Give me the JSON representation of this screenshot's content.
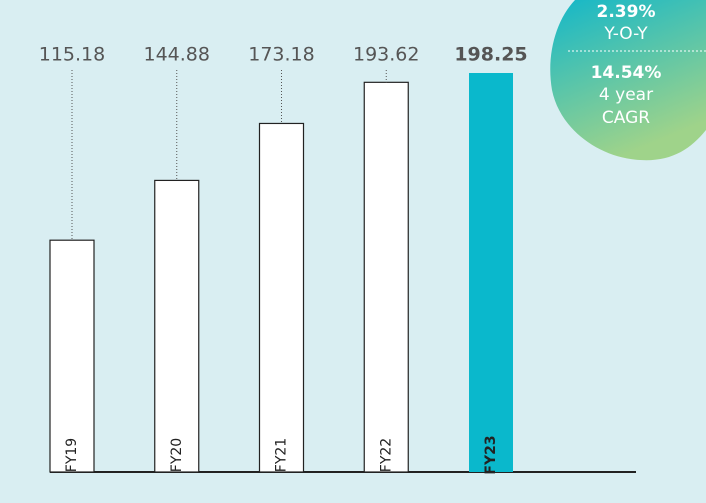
{
  "chart_data": {
    "type": "bar",
    "categories": [
      "FY19",
      "FY20",
      "FY21",
      "FY22",
      "FY23"
    ],
    "values": [
      115.18,
      144.88,
      173.18,
      193.62,
      198.25
    ],
    "color": "#ffffff",
    "highlight_color": "#0ab8cc",
    "highlight_index": 4,
    "annotations": [
      {
        "value": "2.39%",
        "label": [
          "Y-O-Y"
        ]
      },
      {
        "value": "14.54%",
        "label": [
          "4 year",
          "CAGR"
        ]
      }
    ]
  }
}
